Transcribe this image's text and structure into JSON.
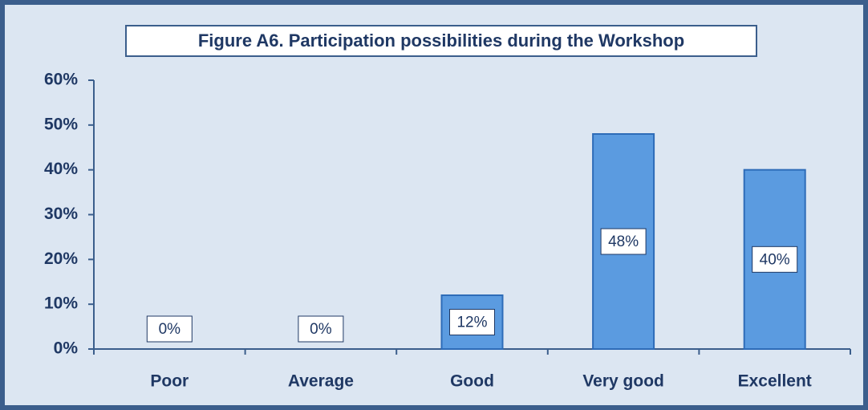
{
  "chart_data": {
    "type": "bar",
    "title": "Figure A6. Participation possibilities during the Workshop",
    "categories": [
      "Poor",
      "Average",
      "Good",
      "Very good",
      "Excellent"
    ],
    "values": [
      0,
      0,
      12,
      48,
      40
    ],
    "value_labels": [
      "0%",
      "0%",
      "12%",
      "48%",
      "40%"
    ],
    "color": "#5b9be0",
    "ylim": [
      0,
      60
    ],
    "yticks": [
      {
        "value": 0,
        "label": "0%"
      },
      {
        "value": 10,
        "label": "10%"
      },
      {
        "value": 20,
        "label": "20%"
      },
      {
        "value": 30,
        "label": "30%"
      },
      {
        "value": 40,
        "label": "40%"
      },
      {
        "value": 50,
        "label": "50%"
      },
      {
        "value": 60,
        "label": "60%"
      }
    ],
    "grid": false
  }
}
